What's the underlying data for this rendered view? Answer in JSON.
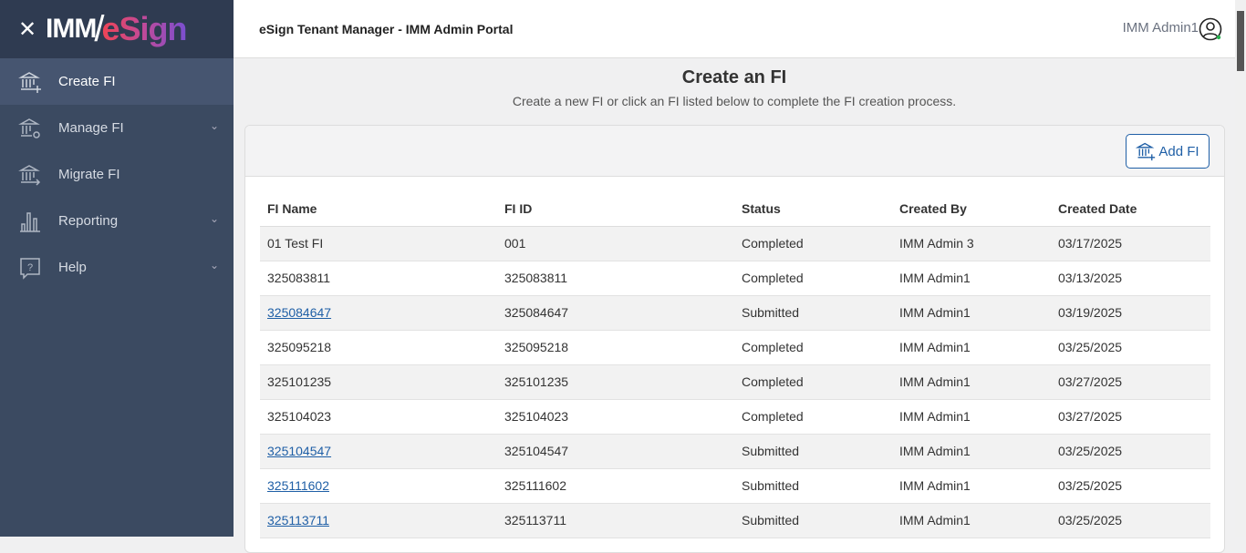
{
  "sidebar": {
    "logo_text": "IMM/eSign",
    "items": [
      {
        "label": "Create FI",
        "icon": "bank-plus-icon",
        "active": true
      },
      {
        "label": "Manage FI",
        "icon": "bank-gear-icon",
        "expandable": true
      },
      {
        "label": "Migrate FI",
        "icon": "bank-arrow-icon"
      },
      {
        "label": "Reporting",
        "icon": "bar-chart-icon",
        "expandable": true
      },
      {
        "label": "Help",
        "icon": "help-bubble-icon",
        "expandable": true
      }
    ]
  },
  "header": {
    "title": "eSign Tenant Manager - IMM Admin Portal",
    "user": "IMM Admin1"
  },
  "page": {
    "title": "Create an FI",
    "subtitle": "Create a new FI or click an FI listed below to complete the FI creation process.",
    "add_button": "Add FI"
  },
  "table": {
    "columns": [
      "FI Name",
      "FI ID",
      "Status",
      "Created By",
      "Created Date"
    ],
    "rows": [
      {
        "name": "01 Test FI",
        "id": "001",
        "status": "Completed",
        "by": "IMM Admin 3",
        "date": "03/17/2025",
        "link": false
      },
      {
        "name": "325083811",
        "id": "325083811",
        "status": "Completed",
        "by": "IMM Admin1",
        "date": "03/13/2025",
        "link": false
      },
      {
        "name": "325084647",
        "id": "325084647",
        "status": "Submitted",
        "by": "IMM Admin1",
        "date": "03/19/2025",
        "link": true
      },
      {
        "name": "325095218",
        "id": "325095218",
        "status": "Completed",
        "by": "IMM Admin1",
        "date": "03/25/2025",
        "link": false
      },
      {
        "name": "325101235",
        "id": "325101235",
        "status": "Completed",
        "by": "IMM Admin1",
        "date": "03/27/2025",
        "link": false
      },
      {
        "name": "325104023",
        "id": "325104023",
        "status": "Completed",
        "by": "IMM Admin1",
        "date": "03/27/2025",
        "link": false
      },
      {
        "name": "325104547",
        "id": "325104547",
        "status": "Submitted",
        "by": "IMM Admin1",
        "date": "03/25/2025",
        "link": true
      },
      {
        "name": "325111602",
        "id": "325111602",
        "status": "Submitted",
        "by": "IMM Admin1",
        "date": "03/25/2025",
        "link": true
      },
      {
        "name": "325113711",
        "id": "325113711",
        "status": "Submitted",
        "by": "IMM Admin1",
        "date": "03/25/2025",
        "link": true
      }
    ]
  }
}
